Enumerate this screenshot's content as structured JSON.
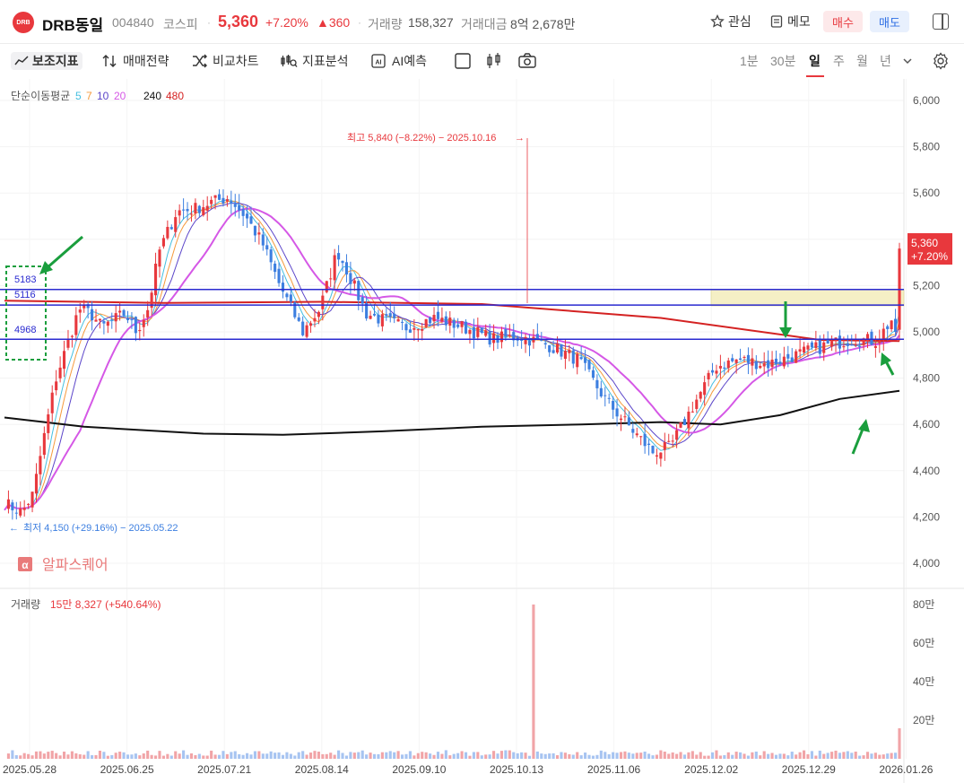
{
  "header": {
    "logo_text": "DRB",
    "name": "DRB동일",
    "code": "004840",
    "market": "코스피",
    "price": "5,360",
    "change_pct": "+7.20%",
    "change": "▲360",
    "volume_label": "거래량",
    "volume": "158,327",
    "amount_label": "거래대금",
    "amount": "8억 2,678만",
    "watch_label": "관심",
    "memo_label": "메모",
    "buy_label": "매수",
    "sell_label": "매도",
    "icons": [
      "star-icon",
      "memo-icon",
      "panel-toggle-icon"
    ]
  },
  "toolbar": {
    "indicators": "보조지표",
    "strategy": "매매전략",
    "compare": "비교차트",
    "analysis": "지표분석",
    "ai": "AI예측",
    "periods": [
      "1분",
      "30분",
      "일",
      "주",
      "월",
      "년"
    ],
    "active_period": "일"
  },
  "colors": {
    "up": "#e8383d",
    "down": "#3d7fe0",
    "ma5": "#44bfe0",
    "ma7": "#f59a3c",
    "ma10": "#5b45c9",
    "ma20": "#d558e6",
    "ma240": "#111111",
    "ma480": "#d42222",
    "annotation": "#1a9e3d",
    "level_line": "#2a2ad0",
    "zone_fill": "#f5efc5"
  },
  "chart_data": {
    "type": "candlestick",
    "legend": {
      "title": "단순이동평균",
      "periods": [
        "5",
        "7",
        "10",
        "20",
        "240",
        "480"
      ]
    },
    "y_ticks": [
      "6,000",
      "5,800",
      "5,600",
      "5,400",
      "5,200",
      "5,000",
      "4,800",
      "4,600",
      "4,400",
      "4,200",
      "4,000"
    ],
    "ylim": [
      4000,
      6000
    ],
    "x_ticks": [
      "2025.05.28",
      "2025.06.25",
      "2025.07.21",
      "2025.08.14",
      "2025.09.10",
      "2025.10.13",
      "2025.11.06",
      "2025.12.02",
      "2025.12.29",
      "2026.01.26"
    ],
    "last_price_label": "5,360",
    "last_change_label": "+7.20%",
    "max_annotation": "최고 5,840 (−8.22%) − 2025.10.16",
    "min_annotation": "최저 4,150 (+29.16%) − 2025.05.22",
    "levels": [
      5183,
      5116,
      4968
    ],
    "level_labels": [
      "5183",
      "5116",
      "4968"
    ],
    "ma240_line": [
      [
        0,
        4630
      ],
      [
        20,
        4590
      ],
      [
        50,
        4560
      ],
      [
        70,
        4555
      ],
      [
        95,
        4570
      ],
      [
        120,
        4590
      ],
      [
        145,
        4600
      ],
      [
        165,
        4610
      ],
      [
        180,
        4600
      ],
      [
        195,
        4640
      ],
      [
        210,
        4710
      ],
      [
        225,
        4745
      ]
    ],
    "ma480_line": [
      [
        0,
        5135
      ],
      [
        40,
        5125
      ],
      [
        80,
        5130
      ],
      [
        120,
        5120
      ],
      [
        165,
        5060
      ],
      [
        205,
        4965
      ],
      [
        225,
        4960
      ]
    ],
    "watermark": "알파스퀘어",
    "volume": {
      "label": "거래량",
      "value": "15만 8,327 (+540.64%)",
      "y_ticks": [
        "80만",
        "60만",
        "40만",
        "20만"
      ],
      "ylim": [
        0,
        800000
      ]
    }
  }
}
